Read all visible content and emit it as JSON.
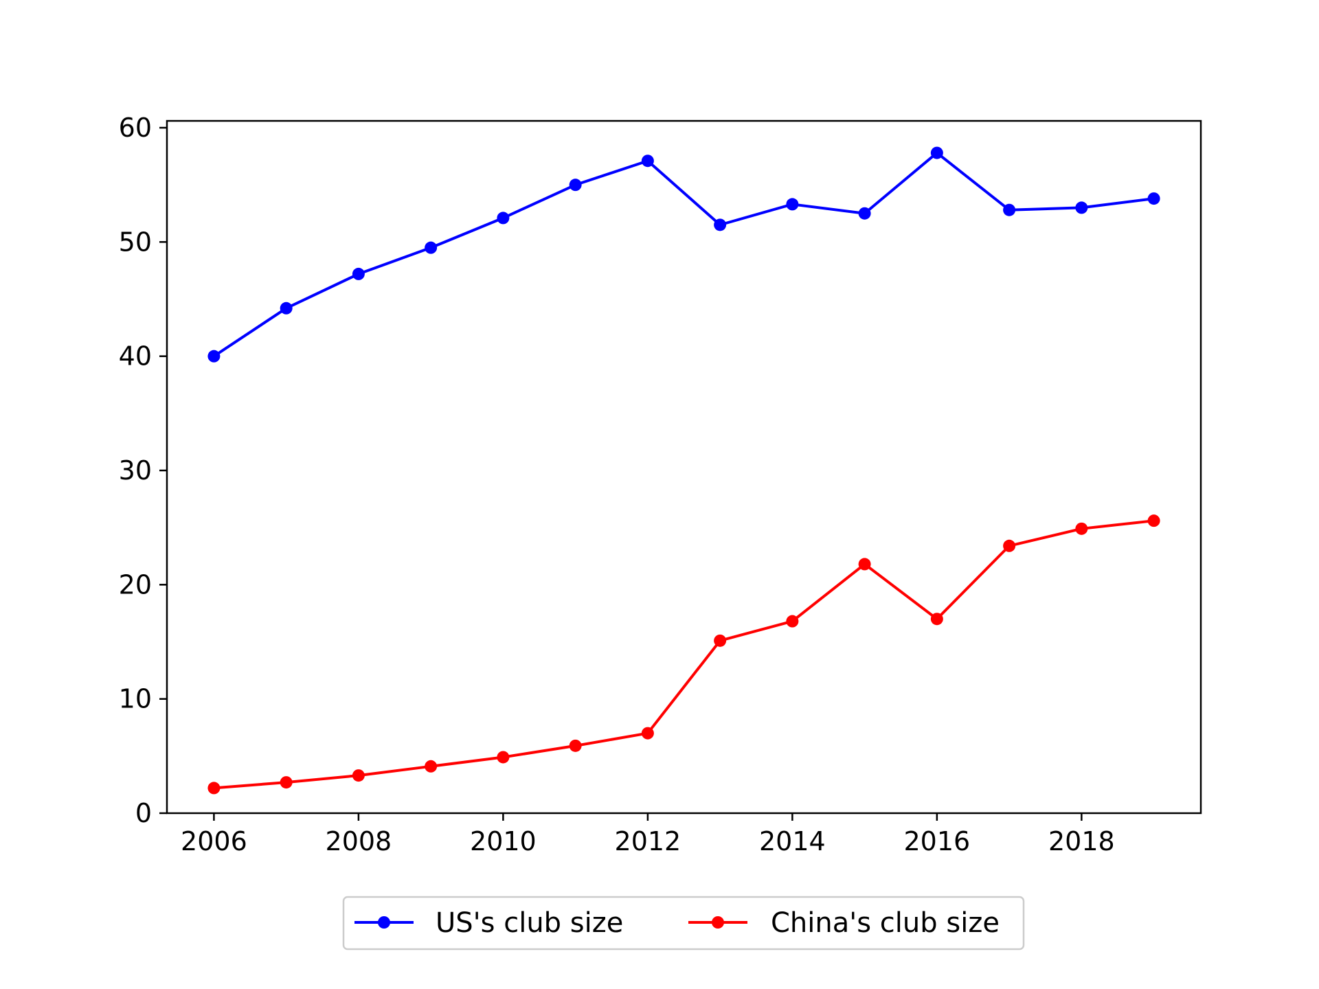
{
  "chart_data": {
    "type": "line",
    "title": "",
    "xlabel": "",
    "ylabel": "",
    "x": [
      2006,
      2007,
      2008,
      2009,
      2010,
      2011,
      2012,
      2013,
      2014,
      2015,
      2016,
      2017,
      2018,
      2019
    ],
    "xlim": [
      2005.35,
      2019.65
    ],
    "ylim": [
      0,
      60.6
    ],
    "xticks": [
      2006,
      2008,
      2010,
      2012,
      2014,
      2016,
      2018
    ],
    "xtick_labels": [
      "2006",
      "2008",
      "2010",
      "2012",
      "2014",
      "2016",
      "2018"
    ],
    "yticks": [
      0,
      10,
      20,
      30,
      40,
      50,
      60
    ],
    "ytick_labels": [
      "0",
      "10",
      "20",
      "30",
      "40",
      "50",
      "60"
    ],
    "grid": false,
    "legend_position": "bottom-center",
    "series": [
      {
        "name": "US's club size",
        "color": "#0000ff",
        "marker": "circle",
        "values": [
          40.0,
          44.2,
          47.2,
          49.5,
          52.1,
          55.0,
          57.1,
          51.5,
          53.3,
          52.5,
          57.8,
          52.8,
          53.0,
          53.8
        ]
      },
      {
        "name": "China's club size",
        "color": "#ff0000",
        "marker": "circle",
        "values": [
          2.2,
          2.7,
          3.3,
          4.1,
          4.9,
          5.9,
          7.0,
          15.1,
          16.8,
          21.8,
          17.0,
          23.4,
          24.9,
          25.6
        ]
      }
    ]
  }
}
